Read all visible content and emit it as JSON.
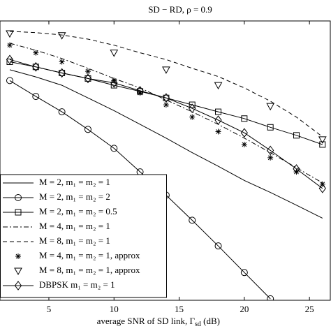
{
  "chart_data": {
    "type": "line",
    "title": "SD − RD, ρ = 0.9",
    "xlabel": "average SNR of SD link, Γ",
    "xlabel_sub": "sd",
    "xlabel_tail": " (dB)",
    "xlim": [
      1.25,
      26.6
    ],
    "xticks": [
      5,
      10,
      15,
      20,
      25
    ],
    "ylim": [
      1e-05,
      0.1
    ],
    "log_y": true,
    "grid": false,
    "legend": "lower left",
    "series": [
      {
        "name": "M = 2, m₁ = m₂ = 1",
        "color": "#000000",
        "dash": "solid",
        "marker": "none",
        "x": [
          2,
          4,
          6,
          8,
          10,
          12,
          14,
          16,
          18,
          20,
          22,
          24,
          26
        ],
        "values": [
          0.02,
          0.0158,
          0.012,
          0.0079,
          0.0052,
          0.0033,
          0.0021,
          0.0013,
          0.00083,
          0.00052,
          0.00035,
          0.00023,
          0.00015
        ]
      },
      {
        "name": "M = 2, m₁ = m₂ = 2",
        "color": "#000000",
        "dash": "solid",
        "marker": "circle",
        "x": [
          2,
          4,
          6,
          8,
          10,
          12,
          14,
          16,
          18,
          20,
          22
        ],
        "values": [
          0.014,
          0.0083,
          0.005,
          0.0028,
          0.0015,
          0.00069,
          0.00032,
          0.00014,
          6e-05,
          2.5e-05,
          1.05e-05
        ]
      },
      {
        "name": "M = 2, m₁ = m₂ = 0.5",
        "color": "#000000",
        "dash": "solid",
        "marker": "square",
        "x": [
          2,
          4,
          6,
          8,
          10,
          12,
          14,
          16,
          18,
          20,
          22,
          24,
          26
        ],
        "values": [
          0.026,
          0.022,
          0.018,
          0.015,
          0.012,
          0.0098,
          0.0079,
          0.0063,
          0.005,
          0.004,
          0.003,
          0.0023,
          0.0017
        ]
      },
      {
        "name": "M = 4, m₁ = m₂ = 1",
        "color": "#000000",
        "dash": "dashdot",
        "marker": "none",
        "x": [
          2,
          4,
          6,
          8,
          10,
          12,
          14,
          16,
          18,
          20,
          22,
          24,
          26
        ],
        "values": [
          0.048,
          0.038,
          0.029,
          0.021,
          0.015,
          0.011,
          0.0074,
          0.005,
          0.0033,
          0.0021,
          0.0013,
          0.00079,
          0.00048
        ]
      },
      {
        "name": "M = 8, m₁ = m₂ = 1",
        "color": "#000000",
        "dash": "dashed",
        "marker": "none",
        "x": [
          2,
          4,
          6,
          8,
          10,
          12,
          14,
          16,
          18,
          20,
          22,
          24,
          26
        ],
        "values": [
          0.071,
          0.068,
          0.063,
          0.055,
          0.045,
          0.035,
          0.028,
          0.021,
          0.016,
          0.011,
          0.0071,
          0.0042,
          0.0022
        ]
      },
      {
        "name": "M = 4, m₁ = m₂ = 1, approx",
        "color": "#000000",
        "dash": "none",
        "marker": "star",
        "x": [
          2,
          4,
          6,
          8,
          10,
          12,
          14,
          16,
          18,
          20,
          22,
          24,
          26
        ],
        "values": [
          0.045,
          0.035,
          0.026,
          0.019,
          0.014,
          0.0093,
          0.0063,
          0.0042,
          0.0026,
          0.0017,
          0.0011,
          0.00069,
          0.00046
        ]
      },
      {
        "name": "M = 8, m₁ = m₂ = 1, approx",
        "color": "#000000",
        "dash": "none",
        "marker": "triangle",
        "x": [
          2,
          6,
          10,
          14,
          18,
          22,
          26
        ],
        "values": [
          0.066,
          0.062,
          0.035,
          0.02,
          0.012,
          0.006,
          0.002
        ]
      },
      {
        "name": "DBPSK m₁ = m₂ = 1",
        "color": "#000000",
        "dash": "solid",
        "marker": "diamond",
        "x": [
          2,
          4,
          6,
          8,
          10,
          12,
          14,
          16,
          18,
          20,
          22,
          24,
          26
        ],
        "values": [
          0.028,
          0.022,
          0.018,
          0.015,
          0.013,
          0.01,
          0.0079,
          0.0056,
          0.0038,
          0.0025,
          0.0014,
          0.00076,
          0.0004
        ]
      }
    ]
  }
}
